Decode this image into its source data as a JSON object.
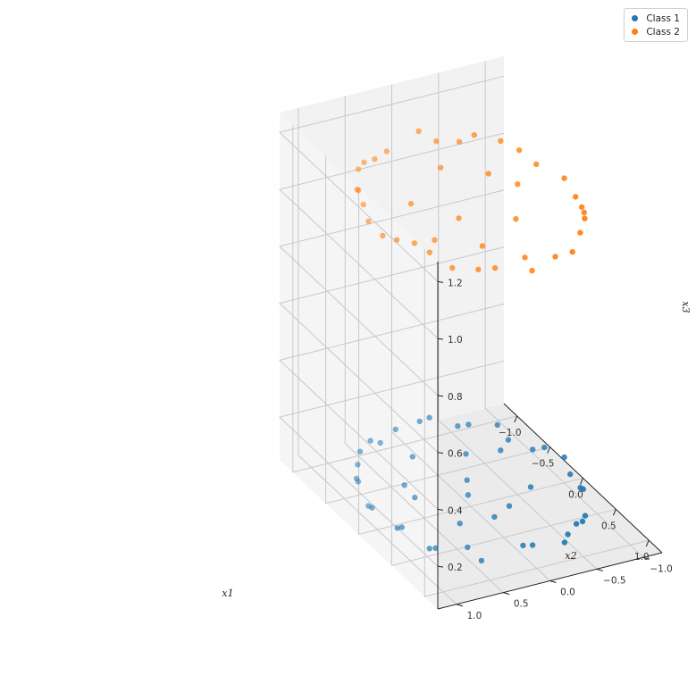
{
  "chart_data": {
    "type": "scatter",
    "projection": "3d",
    "xlabel": "x1",
    "ylabel": "x2",
    "zlabel": "x3",
    "x_ticks": [
      "−1.0",
      "−0.5",
      "0.0",
      "0.5",
      "1.0"
    ],
    "y_ticks": [
      "−1.0",
      "−0.5",
      "0.0",
      "0.5",
      "1.0"
    ],
    "z_ticks": [
      "0.2",
      "0.4",
      "0.6",
      "0.8",
      "1.0",
      "1.2"
    ],
    "xlim": [
      -1.2,
      1.2
    ],
    "ylim": [
      -1.2,
      1.2
    ],
    "zlim": [
      0.05,
      1.27
    ],
    "grid": true,
    "legend_position": "top-right",
    "series": [
      {
        "name": "Class 1",
        "color": "#1f77b4",
        "points": [
          [
            0.98,
            0.03,
            0.13
          ],
          [
            0.87,
            0.5,
            0.09
          ],
          [
            0.6,
            0.8,
            0.1
          ],
          [
            0.26,
            0.97,
            0.11
          ],
          [
            -0.08,
            1.0,
            0.11
          ],
          [
            -0.42,
            0.91,
            0.12
          ],
          [
            -0.71,
            0.71,
            0.1
          ],
          [
            -0.9,
            0.44,
            0.12
          ],
          [
            -1.0,
            0.1,
            0.11
          ],
          [
            -0.97,
            -0.24,
            0.13
          ],
          [
            -0.83,
            -0.56,
            0.11
          ],
          [
            -0.58,
            -0.81,
            0.09
          ],
          [
            -0.26,
            -0.97,
            0.12
          ],
          [
            0.09,
            -1.0,
            0.1
          ],
          [
            0.43,
            -0.9,
            0.13
          ],
          [
            0.73,
            -0.68,
            0.1
          ],
          [
            0.92,
            -0.39,
            0.12
          ],
          [
            0.99,
            0.14,
            0.14
          ],
          [
            0.94,
            -0.34,
            0.1
          ],
          [
            0.8,
            0.6,
            0.13
          ],
          [
            0.55,
            0.83,
            0.09
          ],
          [
            0.3,
            0.95,
            0.12
          ],
          [
            -0.15,
            0.99,
            0.1
          ],
          [
            -0.5,
            0.87,
            0.11
          ],
          [
            -0.76,
            0.65,
            0.13
          ],
          [
            -0.95,
            0.3,
            0.09
          ],
          [
            -0.99,
            -0.15,
            0.12
          ],
          [
            -0.88,
            -0.48,
            0.1
          ],
          [
            -0.66,
            -0.75,
            0.13
          ],
          [
            -0.38,
            -0.93,
            0.09
          ],
          [
            0.0,
            -1.0,
            0.14
          ],
          [
            0.33,
            -0.94,
            0.11
          ],
          [
            0.63,
            -0.78,
            0.09
          ],
          [
            0.85,
            -0.53,
            0.13
          ],
          [
            0.4,
            0.4,
            0.11
          ],
          [
            -0.3,
            0.5,
            0.1
          ],
          [
            0.2,
            -0.5,
            0.12
          ],
          [
            -0.5,
            -0.3,
            0.1
          ],
          [
            0.1,
            0.1,
            0.12
          ],
          [
            -0.2,
            -0.1,
            0.09
          ],
          [
            0.5,
            0.1,
            0.13
          ],
          [
            -0.6,
            0.2,
            0.11
          ],
          [
            0.3,
            -0.2,
            0.1
          ],
          [
            0.0,
            0.6,
            0.13
          ],
          [
            -0.4,
            -0.6,
            0.11
          ]
        ]
      },
      {
        "name": "Class 2",
        "color": "#ff7f0e",
        "points": [
          [
            1.0,
            0.05,
            1.1
          ],
          [
            0.92,
            0.39,
            1.12
          ],
          [
            0.71,
            0.7,
            1.1
          ],
          [
            0.42,
            0.9,
            1.14
          ],
          [
            0.08,
            1.0,
            1.1
          ],
          [
            -0.27,
            0.96,
            1.13
          ],
          [
            -0.59,
            0.8,
            1.1
          ],
          [
            -0.84,
            0.55,
            1.12
          ],
          [
            -0.98,
            0.21,
            1.1
          ],
          [
            -0.99,
            -0.14,
            1.14
          ],
          [
            -0.87,
            -0.49,
            1.1
          ],
          [
            -0.64,
            -0.77,
            1.13
          ],
          [
            -0.34,
            -0.94,
            1.1
          ],
          [
            0.0,
            -1.0,
            1.12
          ],
          [
            0.35,
            -0.94,
            1.1
          ],
          [
            0.65,
            -0.76,
            1.14
          ],
          [
            0.89,
            -0.46,
            1.1
          ],
          [
            0.97,
            -0.22,
            1.12
          ],
          [
            0.55,
            0.83,
            1.13
          ],
          [
            -0.15,
            0.99,
            1.1
          ],
          [
            -0.7,
            0.71,
            1.14
          ],
          [
            -0.95,
            -0.3,
            1.1
          ],
          [
            -0.5,
            -0.87,
            1.12
          ],
          [
            0.2,
            -0.98,
            1.1
          ],
          [
            0.78,
            -0.62,
            1.13
          ],
          [
            0.99,
            0.12,
            1.15
          ],
          [
            0.85,
            0.52,
            1.11
          ],
          [
            0.25,
            0.97,
            1.12
          ],
          [
            -0.43,
            0.9,
            1.14
          ],
          [
            -0.92,
            0.38,
            1.1
          ],
          [
            -0.8,
            -0.6,
            1.13
          ],
          [
            0.5,
            -0.86,
            1.12
          ],
          [
            0.1,
            0.2,
            1.1
          ],
          [
            -0.3,
            -0.4,
            1.12
          ],
          [
            0.4,
            -0.2,
            1.13
          ],
          [
            -0.2,
            0.5,
            1.11
          ],
          [
            0.6,
            0.3,
            1.12
          ],
          [
            -0.6,
            -0.1,
            1.1
          ],
          [
            0.0,
            -0.5,
            1.14
          ],
          [
            0.3,
            0.6,
            1.1
          ]
        ]
      }
    ]
  },
  "legend": {
    "items": [
      {
        "label": "Class 1",
        "color": "#1f77b4"
      },
      {
        "label": "Class 2",
        "color": "#ff7f0e"
      }
    ]
  }
}
